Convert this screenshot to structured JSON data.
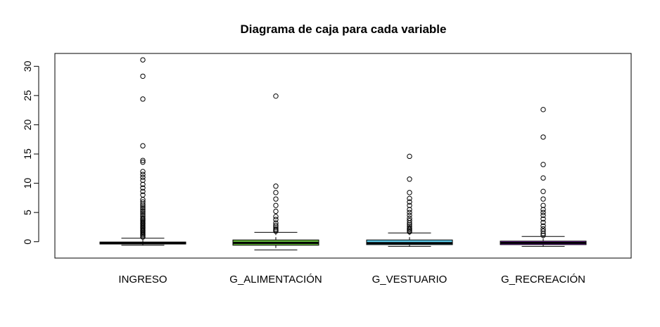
{
  "chart_data": {
    "type": "boxplot",
    "title": "Diagrama de caja para cada variable",
    "xlabel": "",
    "ylabel": "",
    "ylim": [
      -2.8,
      32.2
    ],
    "yticks": [
      0,
      5,
      10,
      15,
      20,
      25,
      30
    ],
    "grid": false,
    "legend": "none",
    "categories": [
      "INGRESO",
      "G_ALIMENTACIÓN",
      "G_VESTUARIO",
      "G_RECREACIÓN"
    ],
    "boxes": [
      {
        "name": "INGRESO",
        "color": "#000000",
        "whisker_low": -0.6,
        "q1": -0.4,
        "median": -0.25,
        "q3": -0.05,
        "whisker_high": 0.6,
        "outliers": [
          0.8,
          1.0,
          1.2,
          1.4,
          1.6,
          1.8,
          2.0,
          2.2,
          2.4,
          2.6,
          2.8,
          3.0,
          3.2,
          3.4,
          3.6,
          3.8,
          4.0,
          4.3,
          4.6,
          4.9,
          5.2,
          5.5,
          5.8,
          6.1,
          6.4,
          6.8,
          7.2,
          8.0,
          8.6,
          9.2,
          9.8,
          10.5,
          11.0,
          11.5,
          12.0,
          13.6,
          13.9,
          16.4,
          24.4,
          28.3,
          31.1
        ]
      },
      {
        "name": "G_ALIMENTACIÓN",
        "color": "#6ac13e",
        "whisker_low": -1.4,
        "q1": -0.6,
        "median": -0.2,
        "q3": 0.3,
        "whisker_high": 1.6,
        "outliers": [
          1.8,
          2.0,
          2.2,
          2.5,
          2.8,
          3.2,
          3.8,
          4.3,
          5.2,
          6.2,
          7.3,
          8.4,
          9.5,
          24.9
        ]
      },
      {
        "name": "G_VESTUARIO",
        "color": "#5bc8e6",
        "whisker_low": -0.8,
        "q1": -0.5,
        "median": -0.25,
        "q3": 0.3,
        "whisker_high": 1.5,
        "outliers": [
          1.7,
          1.9,
          2.1,
          2.3,
          2.6,
          2.9,
          3.2,
          3.6,
          4.0,
          4.5,
          5.0,
          5.5,
          6.2,
          6.8,
          7.4,
          8.4,
          10.7,
          14.6
        ]
      },
      {
        "name": "G_RECREACIÓN",
        "color": "#9b27e0",
        "whisker_low": -0.8,
        "q1": -0.5,
        "median": -0.2,
        "q3": 0.1,
        "whisker_high": 0.9,
        "outliers": [
          1.1,
          1.4,
          1.8,
          2.2,
          2.7,
          3.3,
          3.9,
          4.5,
          5.0,
          5.5,
          6.2,
          7.3,
          8.6,
          10.9,
          13.2,
          17.9,
          22.6
        ]
      }
    ]
  }
}
